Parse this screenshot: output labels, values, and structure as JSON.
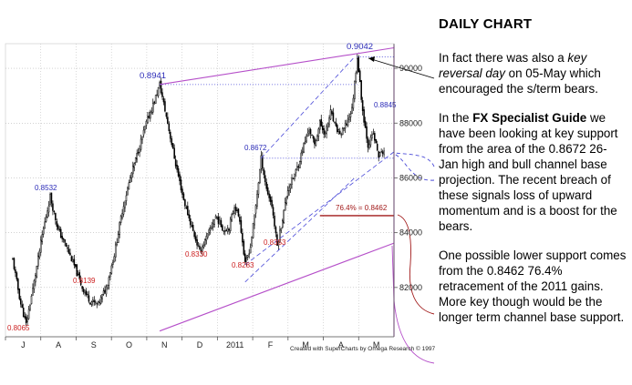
{
  "chart_data": {
    "type": "candlestick",
    "title": "",
    "xlabel": "",
    "ylabel": "",
    "ylim": [
      0.802,
      0.909
    ],
    "y_ticks": [
      {
        "value": 0.9,
        "label": "90000"
      },
      {
        "value": 0.88,
        "label": "88000"
      },
      {
        "value": 0.86,
        "label": "86000"
      },
      {
        "value": 0.84,
        "label": "84000"
      },
      {
        "value": 0.82,
        "label": "82000"
      }
    ],
    "x_ticks": [
      "J",
      "A",
      "S",
      "O",
      "N",
      "D",
      "2011",
      "F",
      "M",
      "A",
      "M"
    ],
    "price_path": [
      [
        0,
        0.83
      ],
      [
        6,
        0.814
      ],
      [
        10,
        0.8065
      ],
      [
        16,
        0.822
      ],
      [
        22,
        0.839
      ],
      [
        28,
        0.8532
      ],
      [
        34,
        0.841
      ],
      [
        40,
        0.835
      ],
      [
        46,
        0.828
      ],
      [
        52,
        0.82
      ],
      [
        58,
        0.815
      ],
      [
        64,
        0.8139
      ],
      [
        70,
        0.82
      ],
      [
        76,
        0.832
      ],
      [
        82,
        0.848
      ],
      [
        88,
        0.86
      ],
      [
        94,
        0.87
      ],
      [
        100,
        0.88
      ],
      [
        106,
        0.888
      ],
      [
        110,
        0.8941
      ],
      [
        116,
        0.88
      ],
      [
        122,
        0.865
      ],
      [
        128,
        0.852
      ],
      [
        134,
        0.842
      ],
      [
        140,
        0.833
      ],
      [
        146,
        0.839
      ],
      [
        152,
        0.846
      ],
      [
        158,
        0.841
      ],
      [
        162,
        0.842
      ],
      [
        166,
        0.85
      ],
      [
        170,
        0.845
      ],
      [
        174,
        0.8283
      ],
      [
        178,
        0.835
      ],
      [
        182,
        0.85
      ],
      [
        186,
        0.8672
      ],
      [
        190,
        0.856
      ],
      [
        194,
        0.85
      ],
      [
        198,
        0.8353
      ],
      [
        202,
        0.845
      ],
      [
        206,
        0.856
      ],
      [
        210,
        0.86
      ],
      [
        214,
        0.865
      ],
      [
        218,
        0.872
      ],
      [
        222,
        0.878
      ],
      [
        226,
        0.872
      ],
      [
        230,
        0.88
      ],
      [
        234,
        0.876
      ],
      [
        238,
        0.884
      ],
      [
        242,
        0.878
      ],
      [
        246,
        0.876
      ],
      [
        250,
        0.88
      ],
      [
        254,
        0.885
      ],
      [
        258,
        0.9042
      ],
      [
        262,
        0.8845
      ],
      [
        266,
        0.872
      ],
      [
        270,
        0.876
      ],
      [
        274,
        0.868
      ],
      [
        278,
        0.87
      ]
    ],
    "annotations": [
      {
        "text": "0.8941",
        "value": 0.8941
      },
      {
        "text": "0.9042",
        "value": 0.9042
      },
      {
        "text": "0.8845",
        "value": 0.8845
      },
      {
        "text": "0.8672",
        "value": 0.8672
      },
      {
        "text": "0.8532",
        "value": 0.8532
      },
      {
        "text": "76.4% = 0.8462",
        "value": 0.8462
      },
      {
        "text": "0.8353",
        "value": 0.8353
      },
      {
        "text": "0.8330",
        "value": 0.833
      },
      {
        "text": "0.8283",
        "value": 0.8283
      },
      {
        "text": "0.8139",
        "value": 0.8139
      },
      {
        "text": "0.8065",
        "value": 0.8065
      }
    ],
    "credit": "Created with SuperCharts by Omega Research © 1997",
    "colors": {
      "candle": "#000000",
      "high_label": "#2b2bb8",
      "low_label": "#cc1f1f",
      "channel": "#b54fc9",
      "projection": "#4a4ad8",
      "fib": "#a01818",
      "axis": "#555555"
    }
  },
  "commentary": {
    "heading": "DAILY CHART",
    "p1": [
      "In fact there was also a ",
      "key reversal day",
      " on 05-May which encouraged the s/term bears."
    ],
    "p2": [
      "In the ",
      "FX Specialist Guide",
      " we have been looking at key support from the area of the 0.8672 26-Jan high and bull channel base projection.  The recent breach of these signals loss of upward momentum and is a boost for the bears."
    ],
    "p3": "One possible lower support comes from the 0.8462 76.4% retracement of the 2011 gains. More key though would be the longer term channel  base support."
  }
}
